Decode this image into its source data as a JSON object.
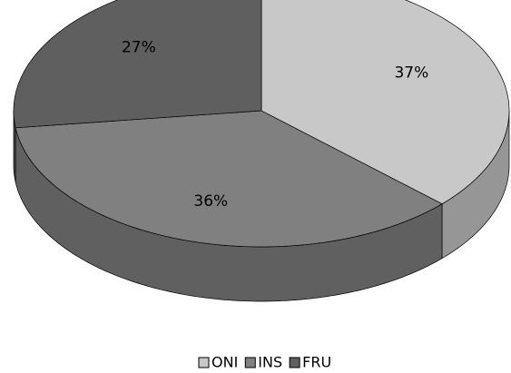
{
  "chart_data": {
    "type": "pie",
    "categories": [
      "ONI",
      "INS",
      "FRU"
    ],
    "values": [
      37,
      36,
      27
    ],
    "value_labels": [
      "37%",
      "36%",
      "27%"
    ],
    "colors": [
      "#c8c8c8",
      "#808080",
      "#5f5f5f"
    ],
    "legend": "bottom"
  }
}
